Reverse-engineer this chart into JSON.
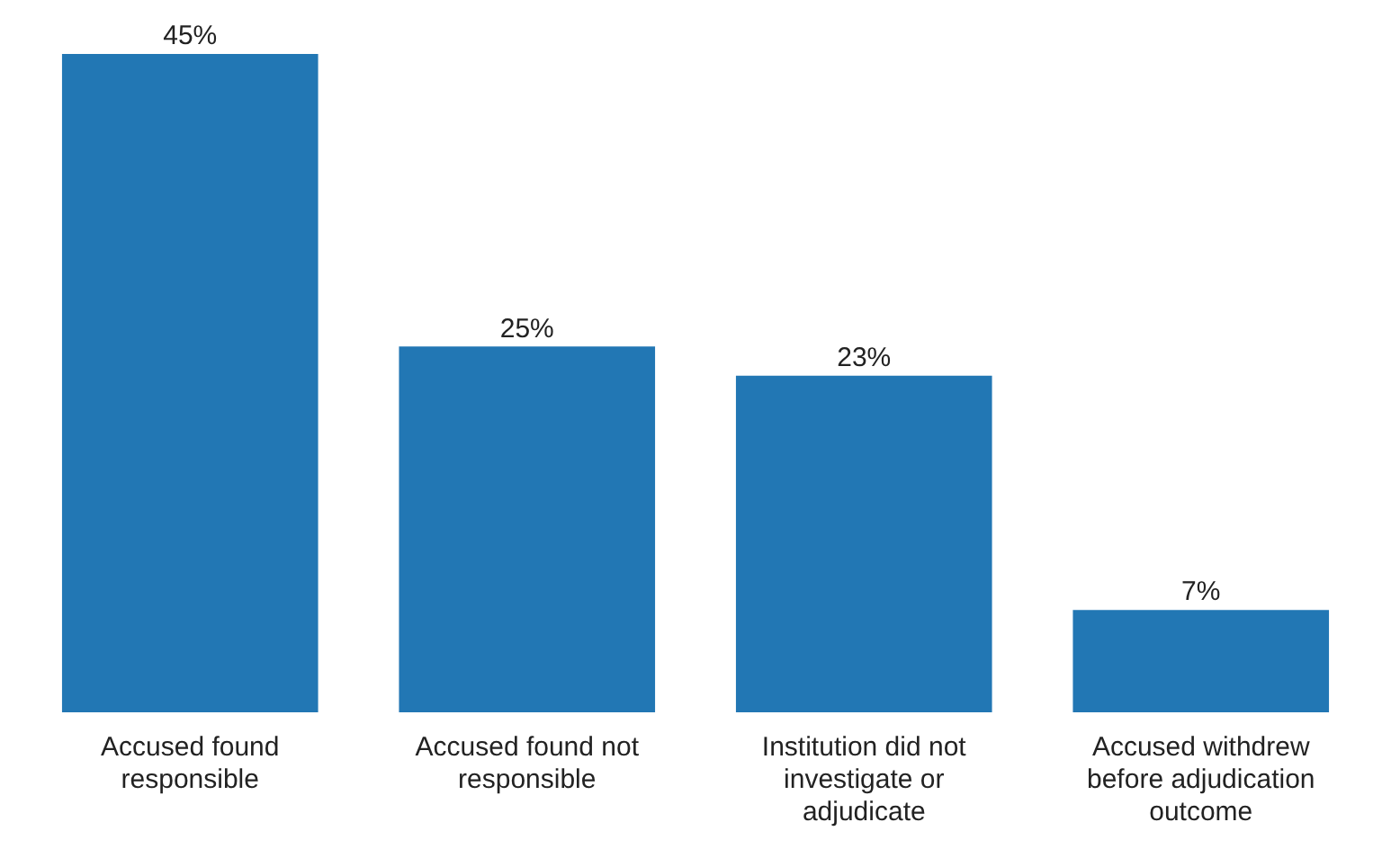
{
  "chart_data": {
    "type": "bar",
    "categories": [
      "Accused found responsible",
      "Accused found not responsible",
      "Institution did not investigate or adjudicate",
      "Accused withdrew before adjudication outcome"
    ],
    "values": [
      45,
      25,
      23,
      7
    ],
    "value_labels": [
      "45%",
      "25%",
      "23%",
      "7%"
    ],
    "color": "#2277b4"
  }
}
